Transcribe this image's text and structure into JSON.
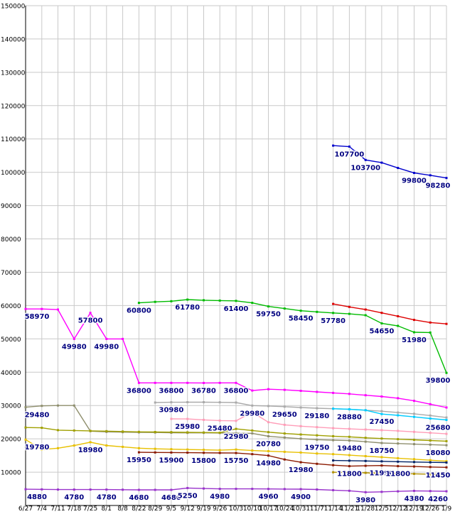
{
  "page": {
    "background": "#ffffff"
  },
  "chart_data": {
    "type": "line",
    "title": "",
    "xlabel": "",
    "ylabel": "",
    "grid": true,
    "grid_color": "#c9c9c9",
    "axis_color": "#000000",
    "label_color": "#000080",
    "legend": "none",
    "y_axis": {
      "min": 0,
      "max": 150000,
      "step": 10000
    },
    "y_tick_labels": [
      "10000",
      "20000",
      "30000",
      "40000",
      "50000",
      "60000",
      "70000",
      "80000",
      "90000",
      "100000",
      "110000",
      "120000",
      "130000",
      "140000",
      "150000"
    ],
    "x_labels": [
      "6/27",
      "7/4",
      "7/11",
      "7/18",
      "7/25",
      "8/1",
      "8/8",
      "8/22",
      "8/29",
      "9/5",
      "9/12",
      "9/19",
      "9/26",
      "10/3",
      "10/10",
      "10/17",
      "10/24",
      "10/31",
      "11/7",
      "11/14",
      "11/21",
      "11/28",
      "12/5",
      "12/12",
      "12/19",
      "12/26",
      "1/9"
    ],
    "series": [
      {
        "name": "series-01",
        "color": "#0000cc",
        "values": [
          null,
          null,
          null,
          null,
          null,
          null,
          null,
          null,
          null,
          null,
          null,
          null,
          null,
          null,
          null,
          null,
          null,
          null,
          null,
          108000,
          107700,
          103700,
          102900,
          101300,
          99800,
          99100,
          98280
        ],
        "labels": [
          {
            "i": 20,
            "t": "107700"
          },
          {
            "i": 21,
            "t": "103700"
          },
          {
            "i": 24,
            "t": "99800"
          },
          {
            "i": 26,
            "t": "98280",
            "dx": -12
          }
        ]
      },
      {
        "name": "series-02",
        "color": "#ff00ff",
        "values": [
          58970,
          58970,
          58800,
          49980,
          57800,
          49980,
          49980,
          36800,
          36800,
          36800,
          36800,
          36780,
          36800,
          36800,
          34500,
          34900,
          34700,
          34400,
          34100,
          33800,
          33500,
          33100,
          32700,
          32200,
          31400,
          30400,
          29400
        ],
        "labels": [
          {
            "i": 0,
            "t": "58970",
            "dx": 16
          },
          {
            "i": 3,
            "t": "49980"
          },
          {
            "i": 4,
            "t": "57800"
          },
          {
            "i": 5,
            "t": "49980"
          },
          {
            "i": 7,
            "t": "36800"
          },
          {
            "i": 9,
            "t": "36800"
          },
          {
            "i": 11,
            "t": "36780"
          },
          {
            "i": 13,
            "t": "36800"
          }
        ]
      },
      {
        "name": "series-03",
        "color": "#00bb00",
        "values": [
          null,
          null,
          null,
          null,
          null,
          null,
          null,
          60800,
          61100,
          61300,
          61780,
          61600,
          61500,
          61400,
          60800,
          59750,
          59100,
          58450,
          58100,
          57780,
          57500,
          57100,
          54650,
          53900,
          51980,
          51900,
          39800
        ],
        "labels": [
          {
            "i": 7,
            "t": "60800"
          },
          {
            "i": 10,
            "t": "61780"
          },
          {
            "i": 13,
            "t": "61400"
          },
          {
            "i": 15,
            "t": "59750"
          },
          {
            "i": 17,
            "t": "58450"
          },
          {
            "i": 19,
            "t": "57780"
          },
          {
            "i": 22,
            "t": "54650"
          },
          {
            "i": 24,
            "t": "51980"
          },
          {
            "i": 26,
            "t": "39800",
            "dx": -12
          }
        ]
      },
      {
        "name": "series-04",
        "color": "#dd0000",
        "values": [
          null,
          null,
          null,
          null,
          null,
          null,
          null,
          null,
          null,
          null,
          null,
          null,
          null,
          null,
          null,
          null,
          null,
          null,
          null,
          60500,
          59600,
          58800,
          57800,
          56800,
          55700,
          54900,
          54500
        ],
        "labels": []
      },
      {
        "name": "series-05",
        "color": "#8f8f6e",
        "values": [
          29480,
          29900,
          30000,
          30000,
          22300,
          22100,
          22000,
          21950,
          21900,
          21850,
          21800,
          21800,
          21750,
          21700,
          21650,
          20780,
          20400,
          20050,
          19750,
          19600,
          19480,
          19150,
          18750,
          18600,
          18400,
          18250,
          18080
        ],
        "labels": [
          {
            "i": 0,
            "t": "29480",
            "dx": 16
          },
          {
            "i": 15,
            "t": "20780"
          },
          {
            "i": 18,
            "t": "19750"
          },
          {
            "i": 20,
            "t": "19480"
          },
          {
            "i": 22,
            "t": "18750"
          },
          {
            "i": 26,
            "t": "18080",
            "dx": -12
          }
        ]
      },
      {
        "name": "series-06",
        "color": "#aaaaaa",
        "values": [
          null,
          null,
          null,
          null,
          null,
          null,
          null,
          null,
          30900,
          30980,
          31000,
          31000,
          30950,
          30900,
          29980,
          29850,
          29650,
          29400,
          29180,
          29050,
          28900,
          28600,
          28300,
          27900,
          27500,
          27000,
          26400
        ],
        "labels": [
          {
            "i": 9,
            "t": "30980"
          },
          {
            "i": 14,
            "t": "29980"
          },
          {
            "i": 16,
            "t": "29650"
          },
          {
            "i": 18,
            "t": "29180"
          }
        ]
      },
      {
        "name": "series-07",
        "color": "#00ccff",
        "values": [
          null,
          null,
          null,
          null,
          null,
          null,
          null,
          null,
          null,
          null,
          null,
          null,
          null,
          null,
          null,
          null,
          null,
          null,
          null,
          29050,
          28880,
          28600,
          27450,
          27050,
          26600,
          26100,
          25680
        ],
        "labels": [
          {
            "i": 20,
            "t": "28880"
          },
          {
            "i": 22,
            "t": "27450"
          },
          {
            "i": 26,
            "t": "25680",
            "dx": -12
          }
        ]
      },
      {
        "name": "series-08",
        "color": "#ff9db8",
        "values": [
          null,
          null,
          null,
          null,
          null,
          null,
          null,
          null,
          null,
          26000,
          25980,
          25700,
          25480,
          25400,
          28000,
          25000,
          24200,
          23800,
          23500,
          23200,
          23000,
          22800,
          22600,
          22400,
          22100,
          21800,
          21500
        ],
        "labels": [
          {
            "i": 10,
            "t": "25980"
          },
          {
            "i": 12,
            "t": "25480"
          }
        ]
      },
      {
        "name": "series-09",
        "color": "#a0a000",
        "values": [
          23400,
          23300,
          22600,
          22500,
          22400,
          22300,
          22200,
          22100,
          22050,
          22000,
          21950,
          21900,
          21850,
          22980,
          22500,
          22000,
          21600,
          21300,
          21050,
          20800,
          20600,
          20300,
          20100,
          19900,
          19700,
          19500,
          19300
        ],
        "labels": [
          {
            "i": 13,
            "t": "22980"
          }
        ]
      },
      {
        "name": "series-10",
        "color": "#e8c000",
        "values": [
          19780,
          16800,
          17200,
          18000,
          18980,
          18000,
          17600,
          17200,
          17000,
          16900,
          16800,
          16700,
          16600,
          16800,
          16500,
          16300,
          16100,
          15900,
          15600,
          15400,
          15100,
          14800,
          14500,
          14200,
          13900,
          13600,
          13300
        ],
        "labels": [
          {
            "i": 0,
            "t": "19780",
            "dx": 16
          },
          {
            "i": 4,
            "t": "18980"
          }
        ]
      },
      {
        "name": "series-11",
        "color": "#8b1a00",
        "values": [
          null,
          null,
          null,
          null,
          null,
          null,
          null,
          15950,
          15925,
          15900,
          15850,
          15800,
          15775,
          15750,
          15400,
          14980,
          13800,
          12980,
          12500,
          12100,
          11800,
          11900,
          11990,
          11800,
          11700,
          11550,
          11450
        ],
        "labels": [
          {
            "i": 7,
            "t": "15950"
          },
          {
            "i": 9,
            "t": "15900"
          },
          {
            "i": 11,
            "t": "15800"
          },
          {
            "i": 13,
            "t": "15750"
          },
          {
            "i": 15,
            "t": "14980"
          },
          {
            "i": 17,
            "t": "12980"
          },
          {
            "i": 20,
            "t": "11800"
          },
          {
            "i": 22,
            "t": "11990"
          },
          {
            "i": 23,
            "t": "11800"
          },
          {
            "i": 26,
            "t": "11450",
            "dx": -12
          }
        ]
      },
      {
        "name": "series-12",
        "color": "#002266",
        "values": [
          null,
          null,
          null,
          null,
          null,
          null,
          null,
          null,
          null,
          null,
          null,
          null,
          null,
          null,
          null,
          null,
          null,
          null,
          null,
          13500,
          13450,
          13350,
          13250,
          13150,
          13050,
          12950,
          12900
        ],
        "labels": []
      },
      {
        "name": "series-13",
        "color": "#b09000",
        "values": [
          null,
          null,
          null,
          null,
          null,
          null,
          null,
          null,
          null,
          null,
          null,
          null,
          null,
          null,
          null,
          null,
          null,
          null,
          null,
          9980,
          9900,
          9800,
          9700,
          9600,
          9500,
          9400,
          9300
        ],
        "labels": []
      },
      {
        "name": "series-14",
        "color": "#9933cc",
        "values": [
          4880,
          4830,
          4780,
          4780,
          4780,
          4780,
          4730,
          4680,
          4680,
          4680,
          5250,
          5100,
          4980,
          4980,
          4980,
          4960,
          4930,
          4900,
          4800,
          4600,
          4400,
          3980,
          4100,
          4250,
          4380,
          4320,
          4260
        ],
        "labels": [
          {
            "i": 0,
            "t": "4880",
            "dx": 16
          },
          {
            "i": 3,
            "t": "4780"
          },
          {
            "i": 5,
            "t": "4780"
          },
          {
            "i": 7,
            "t": "4680"
          },
          {
            "i": 9,
            "t": "4680"
          },
          {
            "i": 10,
            "t": "5250"
          },
          {
            "i": 12,
            "t": "4980"
          },
          {
            "i": 15,
            "t": "4960"
          },
          {
            "i": 17,
            "t": "4900"
          },
          {
            "i": 21,
            "t": "3980"
          },
          {
            "i": 24,
            "t": "4380"
          },
          {
            "i": 26,
            "t": "4260",
            "dx": -12
          }
        ]
      }
    ]
  }
}
